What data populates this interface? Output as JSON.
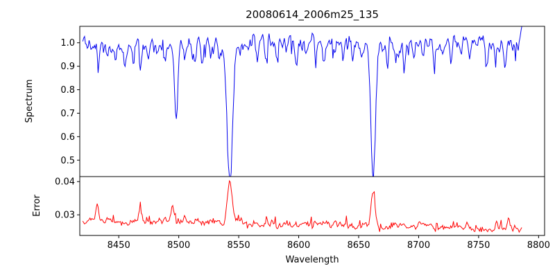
{
  "figure": {
    "title": "20080614_2006m25_135",
    "xlabel": "Wavelength",
    "ylabel_top": "Spectrum",
    "ylabel_bottom": "Error",
    "background": "#ffffff",
    "frame_color": "#000000"
  },
  "chart_data": [
    {
      "type": "line",
      "panel": "top",
      "title": "20080614_2006m25_135",
      "xlabel": "",
      "ylabel": "Spectrum",
      "color": "#0000ee",
      "xlim": [
        8417.5,
        8805
      ],
      "ylim": [
        0.43,
        1.07
      ],
      "grid": false,
      "legend": "none",
      "x_range": [
        8420,
        8786
      ],
      "x_step": 0.75,
      "continuum_level": 1.0,
      "noise_sigma": 0.016,
      "noise_ar": 0.55,
      "dip_spike_prob": 0.05,
      "dip_spike_min": 0.02,
      "dip_spike_extra": 0.05,
      "end_spike": [
        0.03,
        0.05,
        0.06
      ],
      "major_absorption_lines": [
        {
          "center": 8498.0,
          "depth": 0.33,
          "width": 1.3
        },
        {
          "center": 8542.5,
          "depth": 0.555,
          "width": 2.4
        },
        {
          "center": 8662.0,
          "depth": 0.545,
          "width": 1.9
        }
      ],
      "minor_absorption_lines": [
        [
          8427,
          0.06
        ],
        [
          8433,
          0.08
        ],
        [
          8440,
          0.05
        ],
        [
          8447,
          0.09
        ],
        [
          8455,
          0.06
        ],
        [
          8462,
          0.07
        ],
        [
          8468,
          0.13
        ],
        [
          8475,
          0.06
        ],
        [
          8482,
          0.05
        ],
        [
          8489,
          0.07
        ],
        [
          8505,
          0.07
        ],
        [
          8514,
          0.09
        ],
        [
          8520,
          0.06
        ],
        [
          8527,
          0.05
        ],
        [
          8534,
          0.06
        ],
        [
          8551,
          0.06
        ],
        [
          8558,
          0.05
        ],
        [
          8565,
          0.07
        ],
        [
          8573,
          0.06
        ],
        [
          8582,
          0.1
        ],
        [
          8590,
          0.06
        ],
        [
          8598,
          0.09
        ],
        [
          8606,
          0.05
        ],
        [
          8614,
          0.06
        ],
        [
          8621,
          0.08
        ],
        [
          8630,
          0.05
        ],
        [
          8637,
          0.06
        ],
        [
          8645,
          0.07
        ],
        [
          8653,
          0.05
        ],
        [
          8674,
          0.12
        ],
        [
          8681,
          0.07
        ],
        [
          8688,
          0.1
        ],
        [
          8696,
          0.06
        ],
        [
          8704,
          0.05
        ],
        [
          8713,
          0.09
        ],
        [
          8720,
          0.06
        ],
        [
          8727,
          0.07
        ],
        [
          8735,
          0.05
        ],
        [
          8743,
          0.06
        ],
        [
          8750,
          0.05
        ],
        [
          8757,
          0.1
        ],
        [
          8764,
          0.06
        ],
        [
          8772,
          0.08
        ],
        [
          8779,
          0.05
        ]
      ],
      "yticks": {
        "values": [
          0.5,
          0.6,
          0.7,
          0.8,
          0.9,
          1.0
        ],
        "labels": [
          "0.5",
          "0.6",
          "0.7",
          "0.8",
          "0.9",
          "1.0"
        ]
      }
    },
    {
      "type": "line",
      "panel": "bottom",
      "xlabel": "Wavelength",
      "ylabel": "Error",
      "color": "#ff0000",
      "xlim": [
        8417.5,
        8805
      ],
      "ylim": [
        0.0238,
        0.0415
      ],
      "grid": false,
      "legend": "none",
      "x_range": [
        8420,
        8786
      ],
      "x_step": 0.75,
      "baseline_start": 0.0283,
      "baseline_slope": -6.6e-06,
      "noise_sigma": 0.00045,
      "noise_ar": 0.6,
      "up_spike_prob": 0.05,
      "up_spike_min": 0.0008,
      "up_spike_extra": 0.0015,
      "min_clip": 0.0248,
      "error_peaks": [
        {
          "center": 8432.0,
          "amp": 0.005,
          "width": 1.2
        },
        {
          "center": 8468.0,
          "amp": 0.0035,
          "width": 1.2
        },
        {
          "center": 8495.0,
          "amp": 0.0045,
          "width": 1.5
        },
        {
          "center": 8505.0,
          "amp": 0.0025,
          "width": 1.0
        },
        {
          "center": 8542.5,
          "amp": 0.0125,
          "width": 2.0
        },
        {
          "center": 8662.0,
          "amp": 0.0108,
          "width": 1.6
        },
        {
          "center": 8740.0,
          "amp": 0.0015,
          "width": 1.0
        },
        {
          "center": 8765.0,
          "amp": 0.0028,
          "width": 1.2
        },
        {
          "center": 8775.0,
          "amp": 0.0032,
          "width": 1.2
        }
      ],
      "yticks": {
        "values": [
          0.03,
          0.04
        ],
        "labels": [
          "0.03",
          "0.04"
        ]
      },
      "xticks": {
        "values": [
          8450,
          8500,
          8550,
          8600,
          8650,
          8700,
          8750,
          8800
        ],
        "labels": [
          "8450",
          "8500",
          "8550",
          "8600",
          "8650",
          "8700",
          "8750",
          "8800"
        ]
      }
    }
  ],
  "render": {
    "seed": 1234567
  }
}
